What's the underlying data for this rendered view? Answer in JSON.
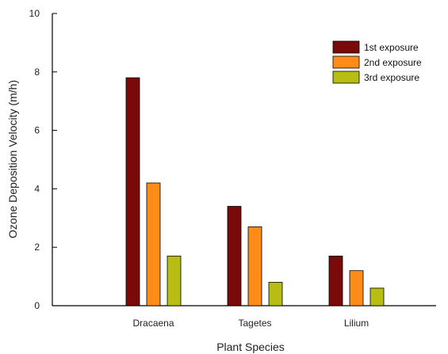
{
  "chart_data": {
    "type": "bar",
    "title": "",
    "xlabel": "Plant Species",
    "ylabel": "Ozone Deposition Velocity (m/h)",
    "categories": [
      "Dracaena",
      "Tagetes",
      "Lilium"
    ],
    "ylim": [
      0,
      10
    ],
    "yticks": [
      0,
      2,
      4,
      6,
      8,
      10
    ],
    "grid": false,
    "legend_position": "top-right",
    "series": [
      {
        "name": "1st exposure",
        "values": [
          7.8,
          3.4,
          1.7
        ],
        "color": "#7a0a0a"
      },
      {
        "name": "2nd exposure",
        "values": [
          4.2,
          2.7,
          1.2
        ],
        "color": "#ff8c1a"
      },
      {
        "name": "3rd exposure",
        "values": [
          1.7,
          0.8,
          0.6
        ],
        "color": "#b7bd12"
      }
    ]
  }
}
